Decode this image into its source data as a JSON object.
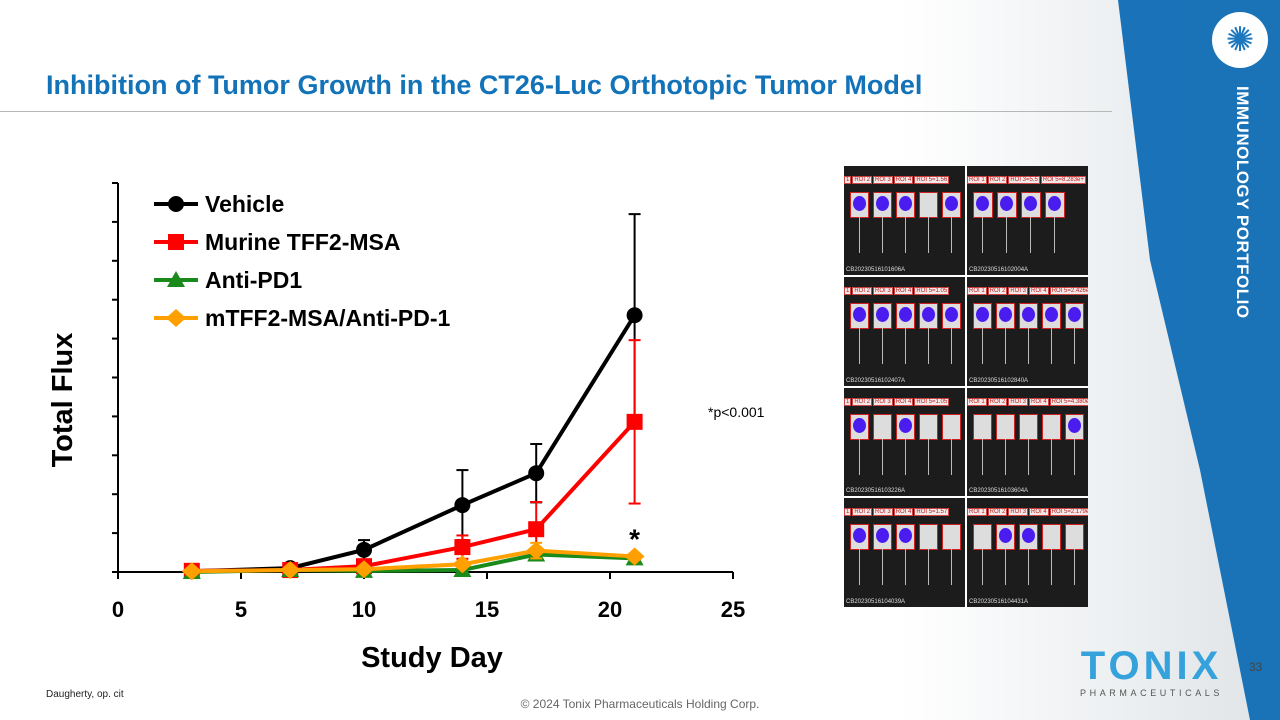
{
  "header": {
    "title": "Inhibition of Tumor Growth in the CT26-Luc Orthotopic Tumor Model"
  },
  "sidebar": {
    "label": "IMMUNOLOGY PORTFOLIO",
    "page_number": "33"
  },
  "logo": {
    "name": "TONIX",
    "subtitle": "PHARMACEUTICALS"
  },
  "footer": {
    "citation": "Daugherty, op. cit",
    "copyright": "© 2024 Tonix Pharmaceuticals Holding Corp."
  },
  "annotation": {
    "pvalue_note": "*p<0.001",
    "star": "*"
  },
  "colors": {
    "vehicle": "#000000",
    "murine": "#ff0000",
    "antipd1": "#1a8a1a",
    "combo": "#ffa000",
    "title": "#1273b8",
    "band": "#0f6cb4"
  },
  "imaging": {
    "tiles": [
      {
        "caption": "CB20230516101606A",
        "roi": [
          "1",
          "ROI 2",
          "ROI 3",
          "ROI 4",
          "ROI 5=1.56"
        ]
      },
      {
        "caption": "CB20230516102004A",
        "roi": [
          "ROI 1",
          "ROI 2",
          "ROI 3=5.5",
          "ROI 5=8.283e+"
        ]
      },
      {
        "caption": "CB20230516102407A",
        "roi": [
          "1",
          "ROI 2",
          "ROI 3",
          "ROI 4",
          "ROI 5=1.05"
        ]
      },
      {
        "caption": "CB20230516102840A",
        "roi": [
          "ROI 1",
          "ROI 2",
          "ROI 3",
          "ROI 4",
          "ROI 5=2.426e+"
        ]
      },
      {
        "caption": "CB20230516103226A",
        "roi": [
          "1",
          "ROI 2",
          "ROI 3",
          "ROI 4",
          "ROI 5=1.05"
        ]
      },
      {
        "caption": "CB20230516103604A",
        "roi": [
          "ROI 1",
          "ROI 2",
          "ROI 3",
          "ROI 4",
          "ROI 5=4.380e+"
        ]
      },
      {
        "caption": "CB20230516104039A",
        "roi": [
          "1",
          "ROI 2",
          "ROI 3",
          "ROI 4",
          "ROI 5=1.57"
        ]
      },
      {
        "caption": "CB20230516104431A",
        "roi": [
          "ROI 1",
          "ROI 2",
          "ROI 3",
          "ROI 4",
          "ROI 5=2.179e+"
        ]
      }
    ]
  },
  "chart_data": {
    "type": "line",
    "title": "",
    "xlabel": "Study Day",
    "ylabel": "Total Flux",
    "xlim": [
      0,
      25
    ],
    "ylim": [
      0,
      10
    ],
    "xticks": [
      0,
      5,
      10,
      15,
      20,
      25
    ],
    "legend_position": "top-left",
    "x": [
      3,
      7,
      10,
      14,
      17,
      21
    ],
    "series": [
      {
        "name": "Vehicle",
        "color": "#000000",
        "marker": "circle",
        "values": [
          0.02,
          0.1,
          0.57,
          1.72,
          2.54,
          6.6
        ],
        "error": [
          0,
          0,
          0.25,
          0.9,
          0.75,
          2.6
        ]
      },
      {
        "name": "Murine TFF2-MSA",
        "color": "#ff0000",
        "marker": "square",
        "values": [
          0.03,
          0.05,
          0.15,
          0.64,
          1.1,
          3.86
        ],
        "error": [
          0,
          0,
          0,
          0.3,
          0.7,
          2.1
        ]
      },
      {
        "name": "Anti-PD1",
        "color": "#1a8a1a",
        "marker": "triangle",
        "values": [
          0,
          0.05,
          0.03,
          0.05,
          0.45,
          0.35
        ],
        "error": [
          0,
          0,
          0,
          0,
          0,
          0
        ]
      },
      {
        "name": "mTFF2-MSA/Anti-PD-1",
        "color": "#ffa000",
        "marker": "diamond",
        "values": [
          0.02,
          0.05,
          0.07,
          0.2,
          0.55,
          0.4
        ],
        "error": [
          0,
          0,
          0,
          0,
          0.2,
          0
        ]
      }
    ]
  }
}
